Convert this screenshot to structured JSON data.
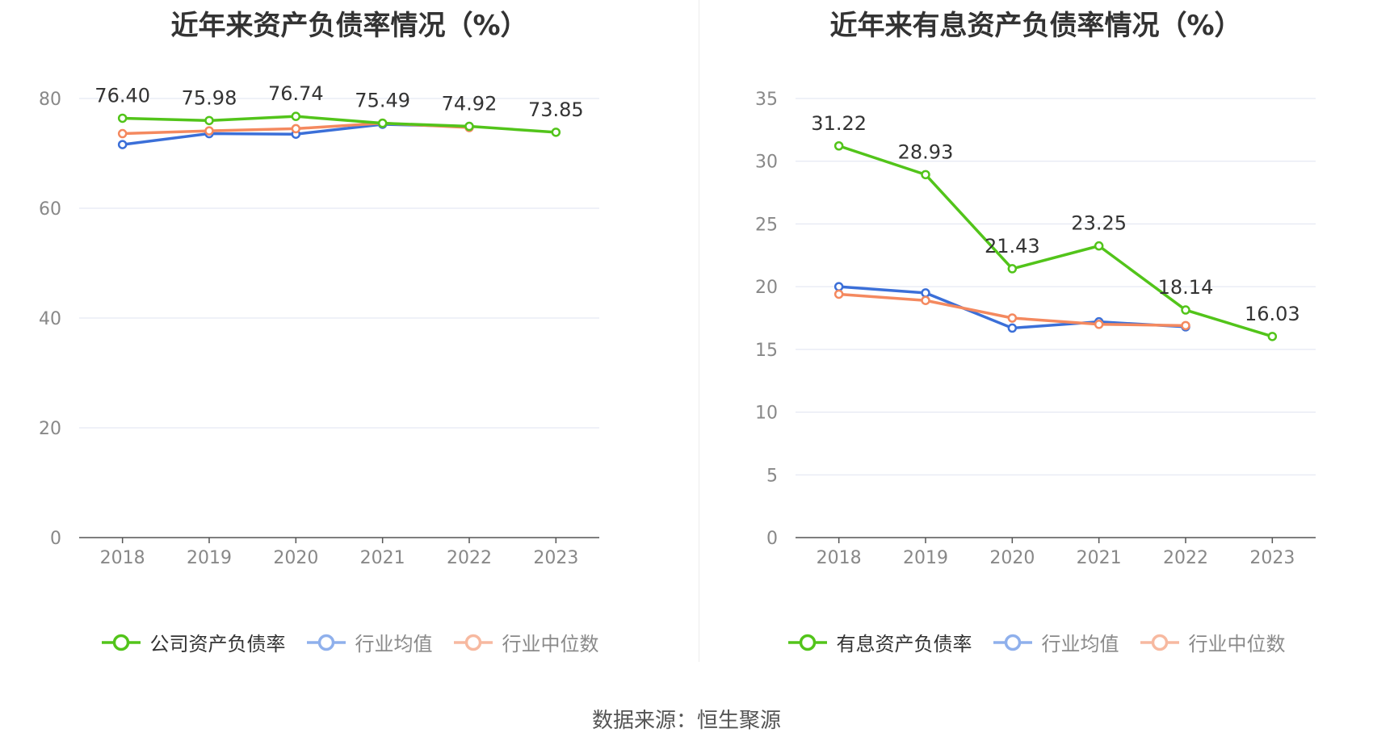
{
  "colors": {
    "company": "#52c41a",
    "industry_avg": "#3b6fd8",
    "industry_median": "#f4895f"
  },
  "source_text": "数据来源：恒生聚源",
  "chart_data": [
    {
      "type": "line",
      "title": "近年来资产负债率情况（%）",
      "x": [
        "2018",
        "2019",
        "2020",
        "2021",
        "2022",
        "2023"
      ],
      "ylim": [
        0,
        80
      ],
      "yticks": [
        0,
        20,
        40,
        60,
        80
      ],
      "grid": true,
      "legend_position": "bottom",
      "series": [
        {
          "name": "公司资产负债率",
          "color": "#52c41a",
          "values": [
            76.4,
            75.98,
            76.74,
            75.49,
            74.92,
            73.85
          ],
          "labels": [
            "76.40",
            "75.98",
            "76.74",
            "75.49",
            "74.92",
            "73.85"
          ]
        },
        {
          "name": "行业均值",
          "color": "#3b6fd8",
          "values": [
            71.6,
            73.6,
            73.5,
            75.3,
            74.9,
            null
          ]
        },
        {
          "name": "行业中位数",
          "color": "#f4895f",
          "values": [
            73.6,
            74.1,
            74.5,
            75.5,
            74.7,
            null
          ]
        }
      ]
    },
    {
      "type": "line",
      "title": "近年来有息资产负债率情况（%）",
      "x": [
        "2018",
        "2019",
        "2020",
        "2021",
        "2022",
        "2023"
      ],
      "ylim": [
        0,
        35
      ],
      "yticks": [
        0,
        5,
        10,
        15,
        20,
        25,
        30,
        35
      ],
      "grid": true,
      "legend_position": "bottom",
      "series": [
        {
          "name": "有息资产负债率",
          "color": "#52c41a",
          "values": [
            31.22,
            28.93,
            21.43,
            23.25,
            18.14,
            16.03
          ],
          "labels": [
            "31.22",
            "28.93",
            "21.43",
            "23.25",
            "18.14",
            "16.03"
          ]
        },
        {
          "name": "行业均值",
          "color": "#3b6fd8",
          "values": [
            20.0,
            19.5,
            16.7,
            17.2,
            16.8,
            null
          ]
        },
        {
          "name": "行业中位数",
          "color": "#f4895f",
          "values": [
            19.4,
            18.9,
            17.5,
            17.0,
            16.9,
            null
          ]
        }
      ]
    }
  ]
}
